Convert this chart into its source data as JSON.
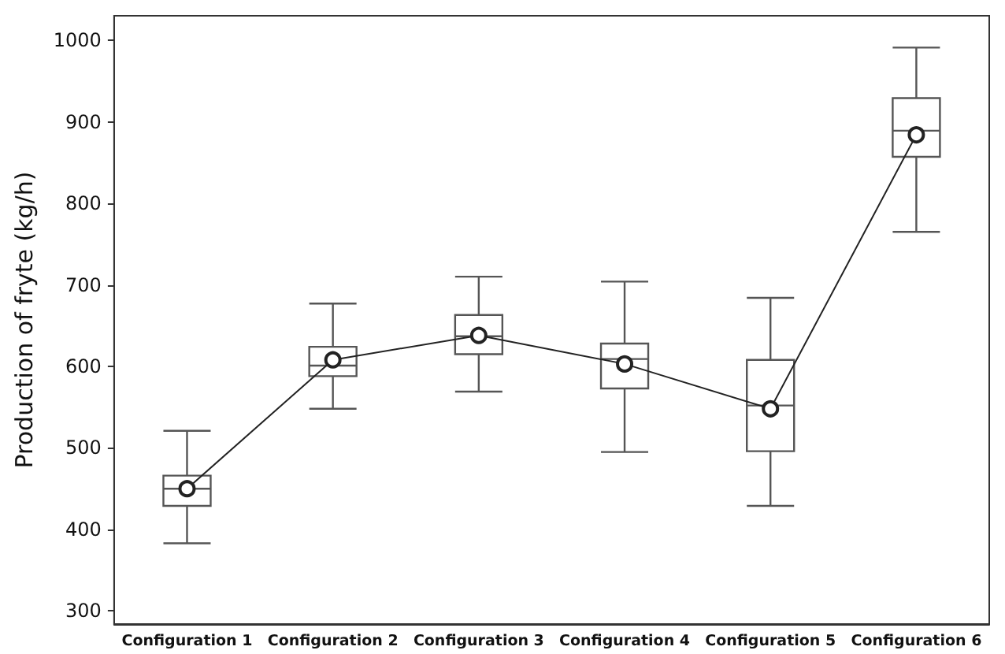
{
  "chart_data": {
    "type": "box",
    "ylabel": "Production of fryte (kg/h)",
    "categories": [
      "Configuration 1",
      "Configuration 2",
      "Configuration 3",
      "Configuration 4",
      "Configuration 5",
      "Configuration 6"
    ],
    "series": [
      {
        "color": "#555555",
        "boxes": [
          {
            "low": 383,
            "q1": 429,
            "median": 450,
            "q3": 466,
            "high": 521
          },
          {
            "low": 548,
            "q1": 588,
            "median": 601,
            "q3": 624,
            "high": 677
          },
          {
            "low": 569,
            "q1": 615,
            "median": 637,
            "q3": 663,
            "high": 710
          },
          {
            "low": 495,
            "q1": 573,
            "median": 609,
            "q3": 628,
            "high": 704
          },
          {
            "low": 429,
            "q1": 496,
            "median": 552,
            "q3": 608,
            "high": 684
          },
          {
            "low": 765,
            "q1": 857,
            "median": 889,
            "q3": 929,
            "high": 991
          }
        ]
      },
      {
        "type": "line",
        "color": "#222222",
        "marker": "circle",
        "values": [
          450,
          608,
          638,
          603,
          548,
          884
        ]
      }
    ],
    "ylim": [
      284,
      1030
    ],
    "yticks": [
      300,
      400,
      500,
      600,
      700,
      800,
      900,
      1000
    ],
    "grid": false
  }
}
